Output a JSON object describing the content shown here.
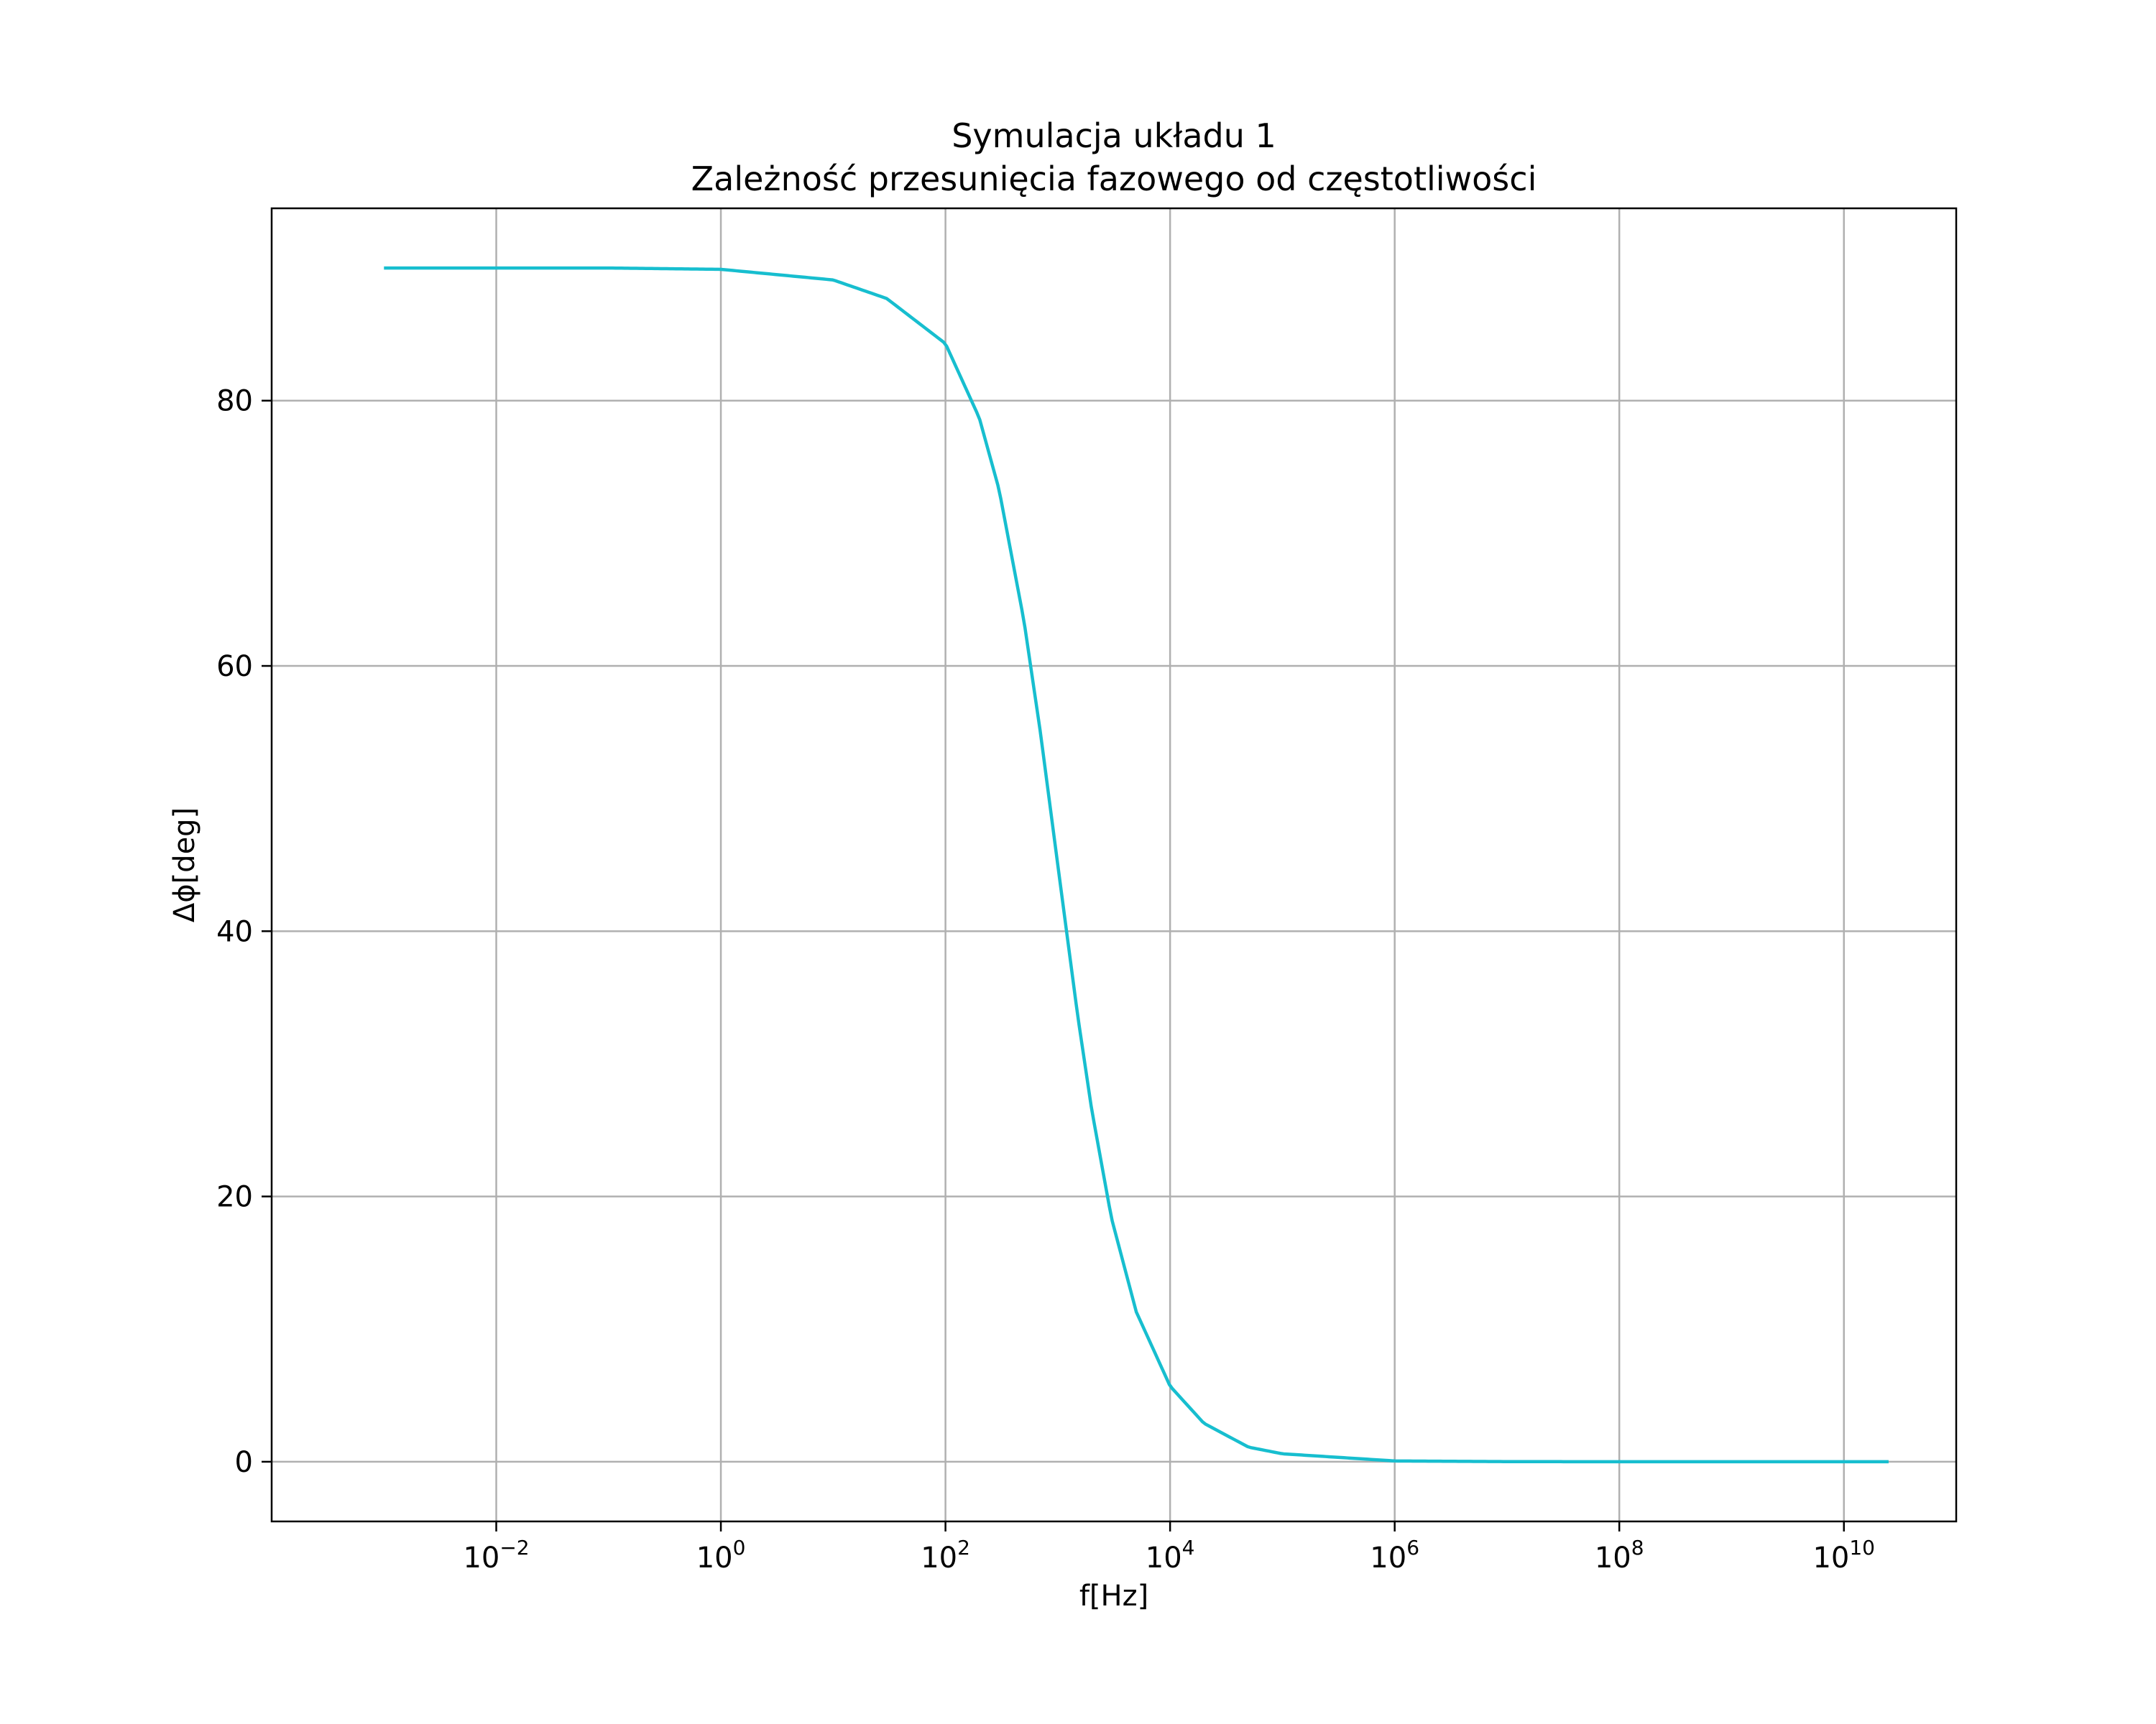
{
  "chart_data": {
    "type": "line",
    "title": "Symulacja układu 1",
    "subtitle": "Zależność przesunięcia fazowego od częstotliwości",
    "xlabel": "f[Hz]",
    "ylabel": "Δϕ[deg]",
    "x_scale": "log",
    "x_tick_labels": [
      {
        "base": "10",
        "exp": "−2",
        "value": 0.01
      },
      {
        "base": "10",
        "exp": "0",
        "value": 1
      },
      {
        "base": "10",
        "exp": "2",
        "value": 100
      },
      {
        "base": "10",
        "exp": "4",
        "value": 10000
      },
      {
        "base": "10",
        "exp": "6",
        "value": 1000000
      },
      {
        "base": "10",
        "exp": "8",
        "value": 100000000
      },
      {
        "base": "10",
        "exp": "10",
        "value": 10000000000
      }
    ],
    "y_ticks": [
      0,
      20,
      40,
      60,
      80
    ],
    "xlim": [
      0.0001,
      100000000000.0
    ],
    "ylim": [
      -4.5,
      94.5
    ],
    "grid": true,
    "series": [
      {
        "color": "#17becf",
        "x": [
          0.001,
          0.01,
          0.1,
          1,
          10,
          30,
          100,
          200,
          300,
          500,
          700,
          1000,
          1500,
          2000,
          3000,
          5000,
          10000,
          20000,
          50000,
          100000,
          1000000,
          10000000,
          100000000,
          1000000000,
          10000000000,
          25000000000
        ],
        "y": [
          90,
          90,
          90,
          89.9,
          89.1,
          87.7,
          84.3,
          78.7,
          73.3,
          63.4,
          55.0,
          45.0,
          33.7,
          26.6,
          18.4,
          11.3,
          5.7,
          2.9,
          1.1,
          0.6,
          0.06,
          0.01,
          0,
          0,
          0,
          0
        ]
      }
    ]
  }
}
